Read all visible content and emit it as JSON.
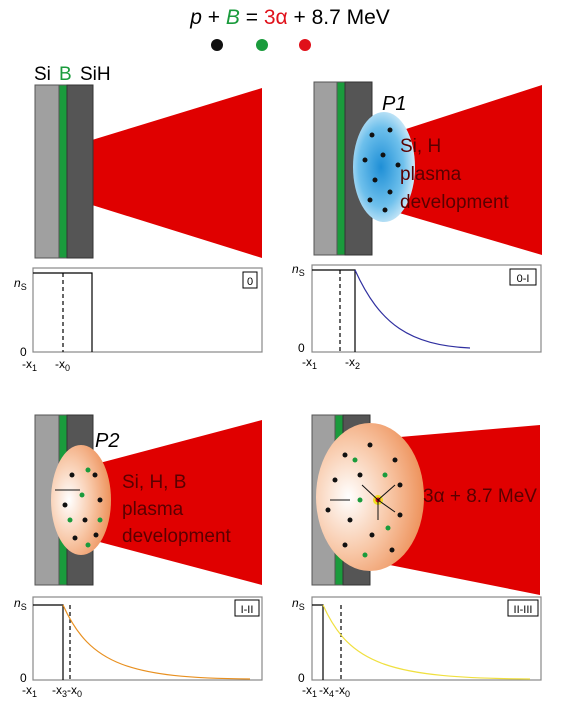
{
  "equation": {
    "p": "p",
    "plus": "+",
    "b": "B",
    "equals": "=",
    "alpha": "3α",
    "rest": "+ 8.7 MeV"
  },
  "layers": [
    "Si",
    "B",
    "SiH"
  ],
  "panels": [
    {
      "id": "0",
      "y_label": "n",
      "y_sub": "S",
      "zero": "0",
      "ticks": [
        {
          "base": "-x",
          "sub": "1"
        },
        {
          "base": "-x",
          "sub": "0"
        }
      ]
    },
    {
      "id": "0-I",
      "plasma": "P1",
      "text": [
        "Si, H",
        "plasma",
        "development"
      ],
      "y_label": "n",
      "y_sub": "S",
      "zero": "0",
      "ticks": [
        {
          "base": "-x",
          "sub": "1"
        },
        {
          "base": "-x",
          "sub": "2"
        }
      ]
    },
    {
      "id": "I-II",
      "plasma": "P2",
      "text": [
        "Si, H, B",
        "plasma",
        "development"
      ],
      "y_label": "n",
      "y_sub": "S",
      "zero": "0",
      "ticks": [
        {
          "base": "-x",
          "sub": "1"
        },
        {
          "base": "-x",
          "sub": "3"
        },
        {
          "base": "-x",
          "sub": "0"
        }
      ]
    },
    {
      "id": "II-III",
      "text": [
        "3α + 8.7 MeV"
      ],
      "y_label": "n",
      "y_sub": "S",
      "zero": "0",
      "ticks": [
        {
          "base": "-x",
          "sub": "1"
        },
        {
          "base": "-x",
          "sub": "4"
        },
        {
          "base": "-x",
          "sub": "0"
        }
      ]
    }
  ]
}
